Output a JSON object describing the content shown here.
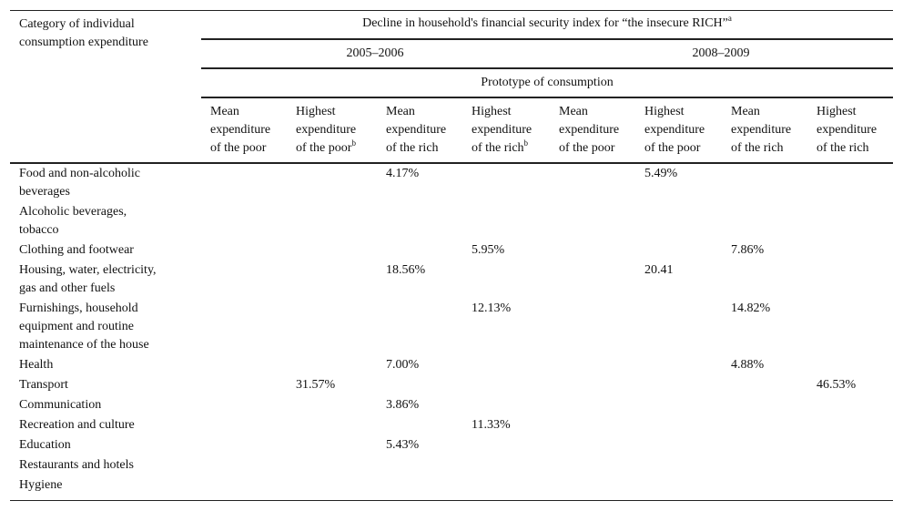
{
  "table": {
    "stub_header": [
      "Category of individual",
      "consumption expenditure"
    ],
    "title": "Decline in household's financial security index for “the insecure RICH”",
    "title_footnote": "a",
    "periods": [
      "2005–2006",
      "2008–2009"
    ],
    "prototype_label": "Prototype of consumption",
    "columns": [
      {
        "lines": [
          "Mean",
          "expenditure",
          "of the poor"
        ],
        "footnote": ""
      },
      {
        "lines": [
          "Highest",
          "expenditure",
          "of the poor"
        ],
        "footnote": "b"
      },
      {
        "lines": [
          "Mean",
          "expenditure",
          "of the rich"
        ],
        "footnote": ""
      },
      {
        "lines": [
          "Highest",
          "expenditure",
          "of the rich"
        ],
        "footnote": "b"
      },
      {
        "lines": [
          "Mean",
          "expenditure",
          "of the poor"
        ],
        "footnote": ""
      },
      {
        "lines": [
          "Highest",
          "expenditure",
          "of the poor"
        ],
        "footnote": ""
      },
      {
        "lines": [
          "Mean",
          "expenditure",
          "of the rich"
        ],
        "footnote": ""
      },
      {
        "lines": [
          "Highest",
          "expenditure",
          "of the rich"
        ],
        "footnote": ""
      }
    ],
    "rows": [
      {
        "label": [
          "Food and non-alcoholic",
          "beverages"
        ],
        "cells": [
          "",
          "",
          "4.17%",
          "",
          "",
          "5.49%",
          "",
          ""
        ]
      },
      {
        "label": [
          "Alcoholic beverages,",
          "tobacco"
        ],
        "cells": [
          "",
          "",
          "",
          "",
          "",
          "",
          "",
          ""
        ]
      },
      {
        "label": [
          "Clothing and footwear"
        ],
        "cells": [
          "",
          "",
          "",
          "5.95%",
          "",
          "",
          "7.86%",
          ""
        ]
      },
      {
        "label": [
          "Housing, water, electricity,",
          "gas and other fuels"
        ],
        "cells": [
          "",
          "",
          "18.56%",
          "",
          "",
          "20.41",
          "",
          ""
        ]
      },
      {
        "label": [
          "Furnishings, household",
          "equipment and routine",
          "maintenance of the house"
        ],
        "cells": [
          "",
          "",
          "",
          "12.13%",
          "",
          "",
          "14.82%",
          ""
        ]
      },
      {
        "label": [
          "Health"
        ],
        "cells": [
          "",
          "",
          "7.00%",
          "",
          "",
          "",
          "4.88%",
          ""
        ]
      },
      {
        "label": [
          "Transport"
        ],
        "cells": [
          "",
          "31.57%",
          "",
          "",
          "",
          "",
          "",
          "46.53%"
        ]
      },
      {
        "label": [
          "Communication"
        ],
        "cells": [
          "",
          "",
          "3.86%",
          "",
          "",
          "",
          "",
          ""
        ]
      },
      {
        "label": [
          "Recreation and culture"
        ],
        "cells": [
          "",
          "",
          "",
          "11.33%",
          "",
          "",
          "",
          ""
        ]
      },
      {
        "label": [
          "Education"
        ],
        "cells": [
          "",
          "",
          "5.43%",
          "",
          "",
          "",
          "",
          ""
        ]
      },
      {
        "label": [
          "Restaurants and hotels"
        ],
        "cells": [
          "",
          "",
          "",
          "",
          "",
          "",
          "",
          ""
        ]
      },
      {
        "label": [
          "Hygiene"
        ],
        "cells": [
          "",
          "",
          "",
          "",
          "",
          "",
          "",
          ""
        ]
      }
    ]
  }
}
